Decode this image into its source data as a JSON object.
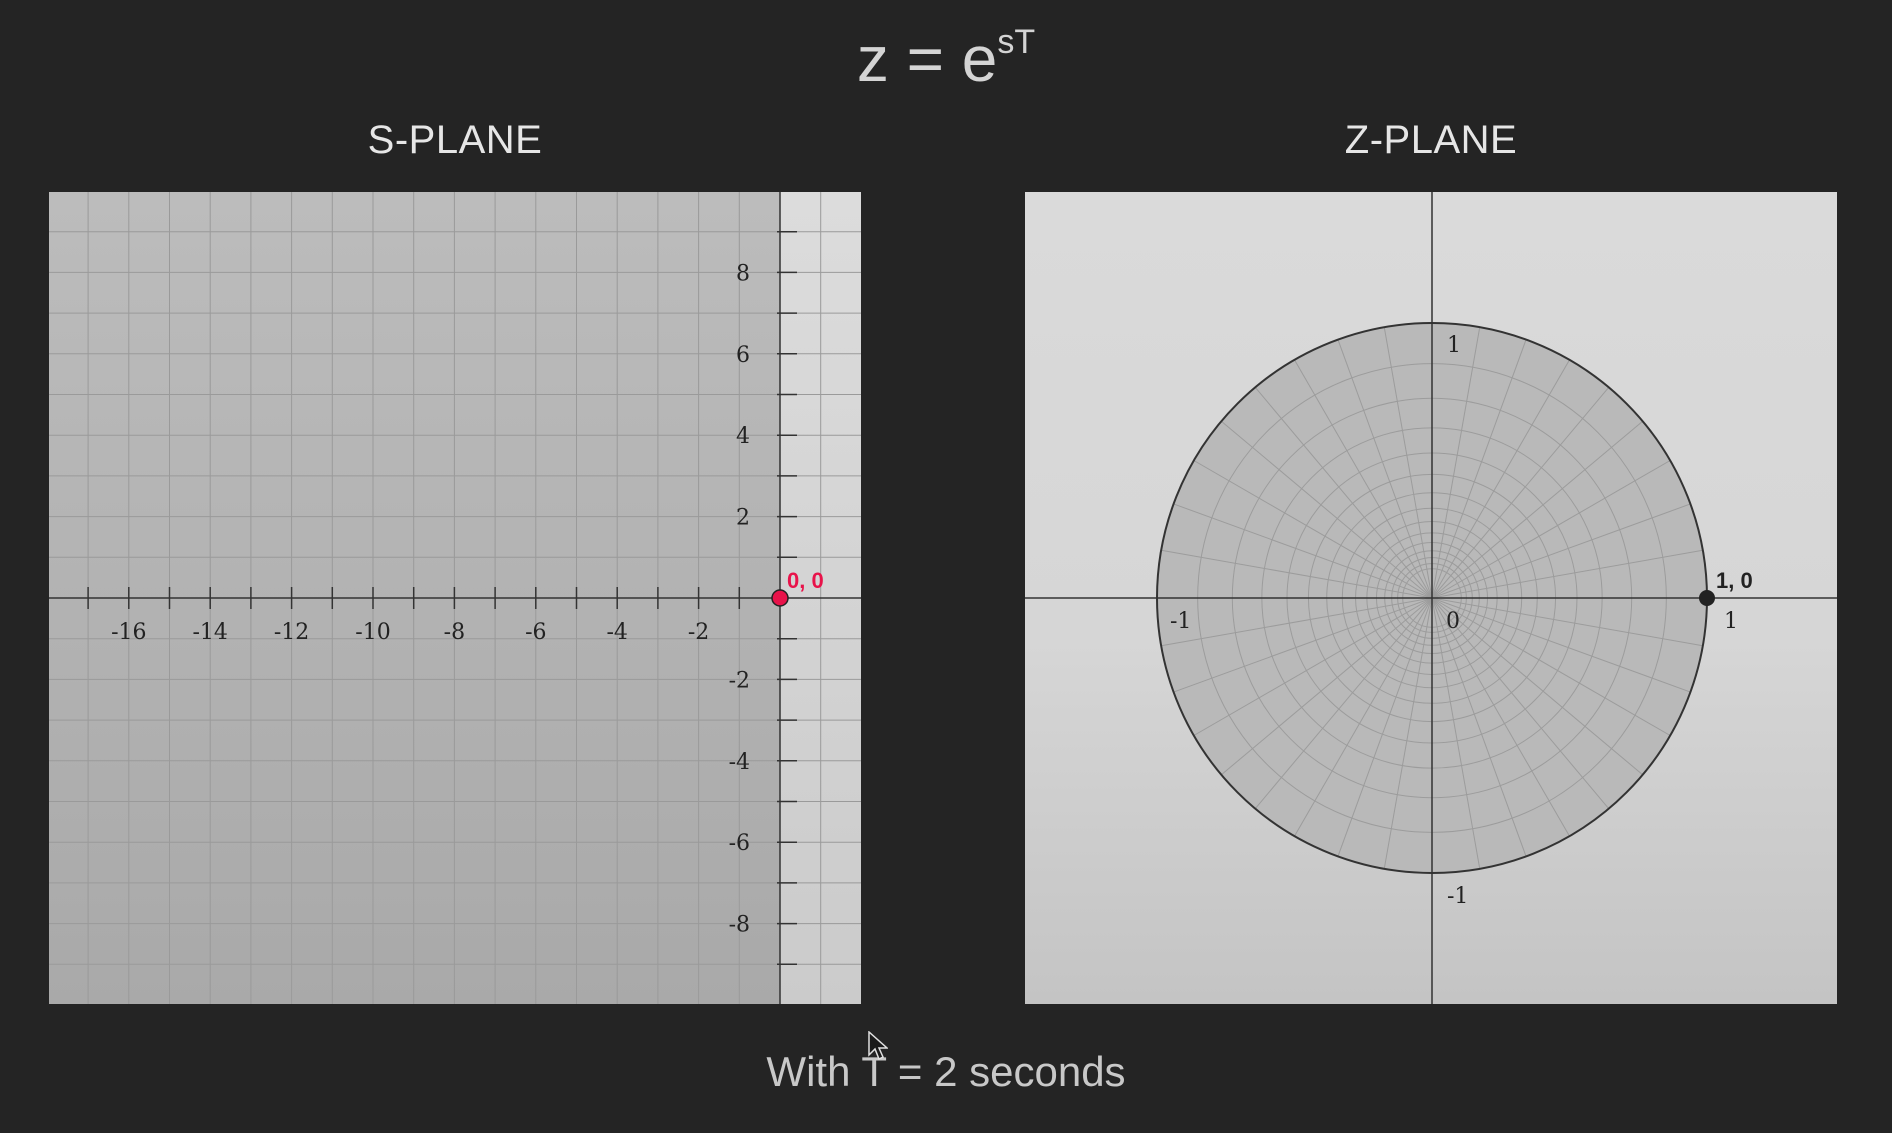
{
  "formula": {
    "base": "z = e",
    "exponent": "sT"
  },
  "s_plane": {
    "title": "S-PLANE",
    "x_ticks": [
      "-16",
      "-14",
      "-12",
      "-10",
      "-8",
      "-6",
      "-4",
      "-2"
    ],
    "y_ticks": [
      "8",
      "6",
      "4",
      "2",
      "-2",
      "-4",
      "-6",
      "-8"
    ],
    "point_label": "0, 0",
    "point_color": "#e8134a"
  },
  "z_plane": {
    "title": "Z-PLANE",
    "labels": {
      "top": "1",
      "bottom": "-1",
      "left": "-1",
      "right": "1",
      "origin": "0"
    },
    "point_label": "1, 0",
    "point_color": "#222222"
  },
  "caption": "With T = 2 seconds",
  "colors": {
    "background": "#242424",
    "plane_dark": "#b4b4b4",
    "plane_light": "#d9d9d9"
  }
}
